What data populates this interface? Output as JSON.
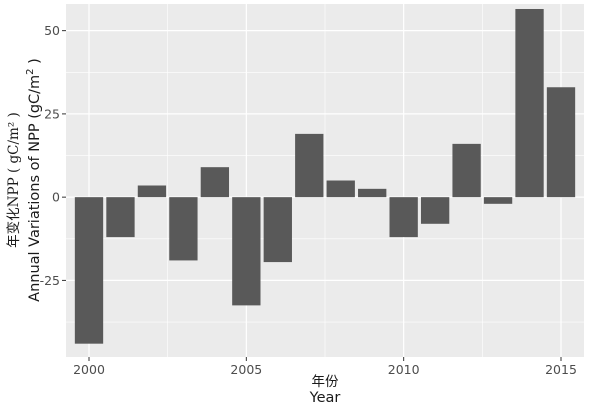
{
  "chart_data": {
    "type": "bar",
    "xlabel_cn": "年份",
    "xlabel": "Year",
    "ylabel_cn": "年变化NPP ( gC/m² )",
    "ylabel_main": "Annual Variations of NPP (gC/m",
    "ylabel_sup": "2",
    "ylabel_tail": " )",
    "x": [
      2000,
      2001,
      2002,
      2003,
      2004,
      2005,
      2006,
      2007,
      2008,
      2009,
      2010,
      2011,
      2012,
      2013,
      2014,
      2015
    ],
    "values": [
      -44,
      -12,
      3.5,
      -19,
      9,
      -32.5,
      -19.5,
      19,
      5,
      2.5,
      -12,
      -8,
      16,
      -2,
      56.5,
      33
    ],
    "xlim": [
      1999.5,
      2015.5
    ],
    "ylim": [
      -48,
      58
    ],
    "xticks": [
      2000,
      2005,
      2010,
      2015
    ],
    "yticks": [
      -25,
      0,
      25,
      50
    ],
    "ytick_labels": [
      "-25",
      "0",
      "25",
      "50"
    ],
    "grid": true,
    "colors": {
      "panel": "#ebebeb",
      "bar": "#595959",
      "grid": "#ffffff",
      "axis_text": "#4d4d4d"
    }
  }
}
